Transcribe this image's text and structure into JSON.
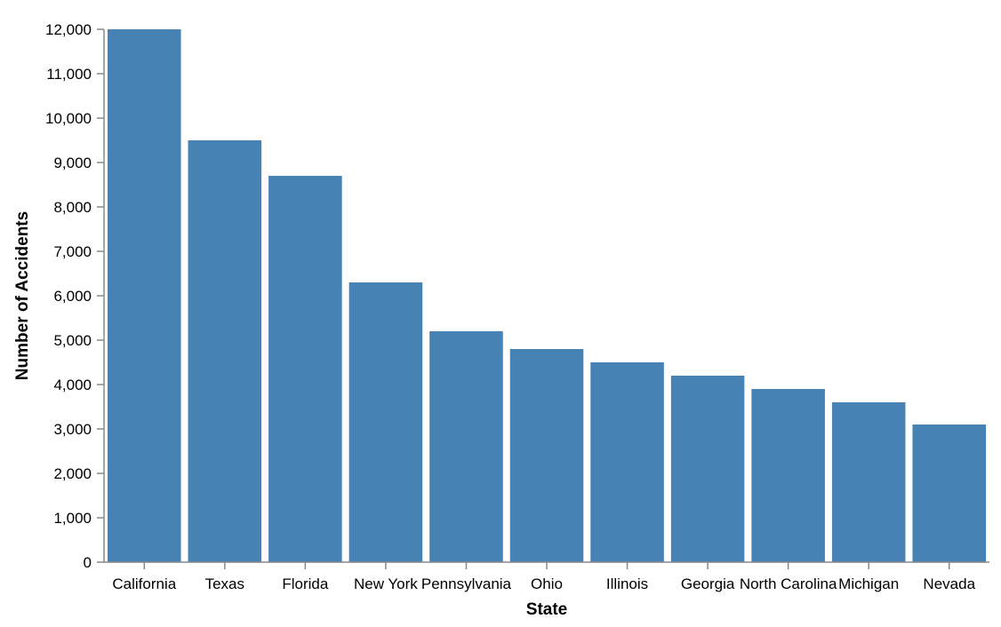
{
  "chart_data": {
    "type": "bar",
    "title": "",
    "xlabel": "State",
    "ylabel": "Number of Accidents",
    "categories": [
      "California",
      "Texas",
      "Florida",
      "New York",
      "Pennsylvania",
      "Ohio",
      "Illinois",
      "Georgia",
      "North Carolina",
      "Michigan",
      "Nevada"
    ],
    "values": [
      12000,
      9500,
      8700,
      6300,
      5200,
      4800,
      4500,
      4200,
      3900,
      3600,
      3100
    ],
    "ylim": [
      0,
      12000
    ],
    "yticks": [
      0,
      1000,
      2000,
      3000,
      4000,
      5000,
      6000,
      7000,
      8000,
      9000,
      10000,
      11000,
      12000
    ],
    "ytick_labels": [
      "0",
      "1,000",
      "2,000",
      "3,000",
      "4,000",
      "5,000",
      "6,000",
      "7,000",
      "8,000",
      "9,000",
      "10,000",
      "11,000",
      "12,000"
    ],
    "bar_color": "#4682b4",
    "grid": false,
    "legend": "none"
  }
}
